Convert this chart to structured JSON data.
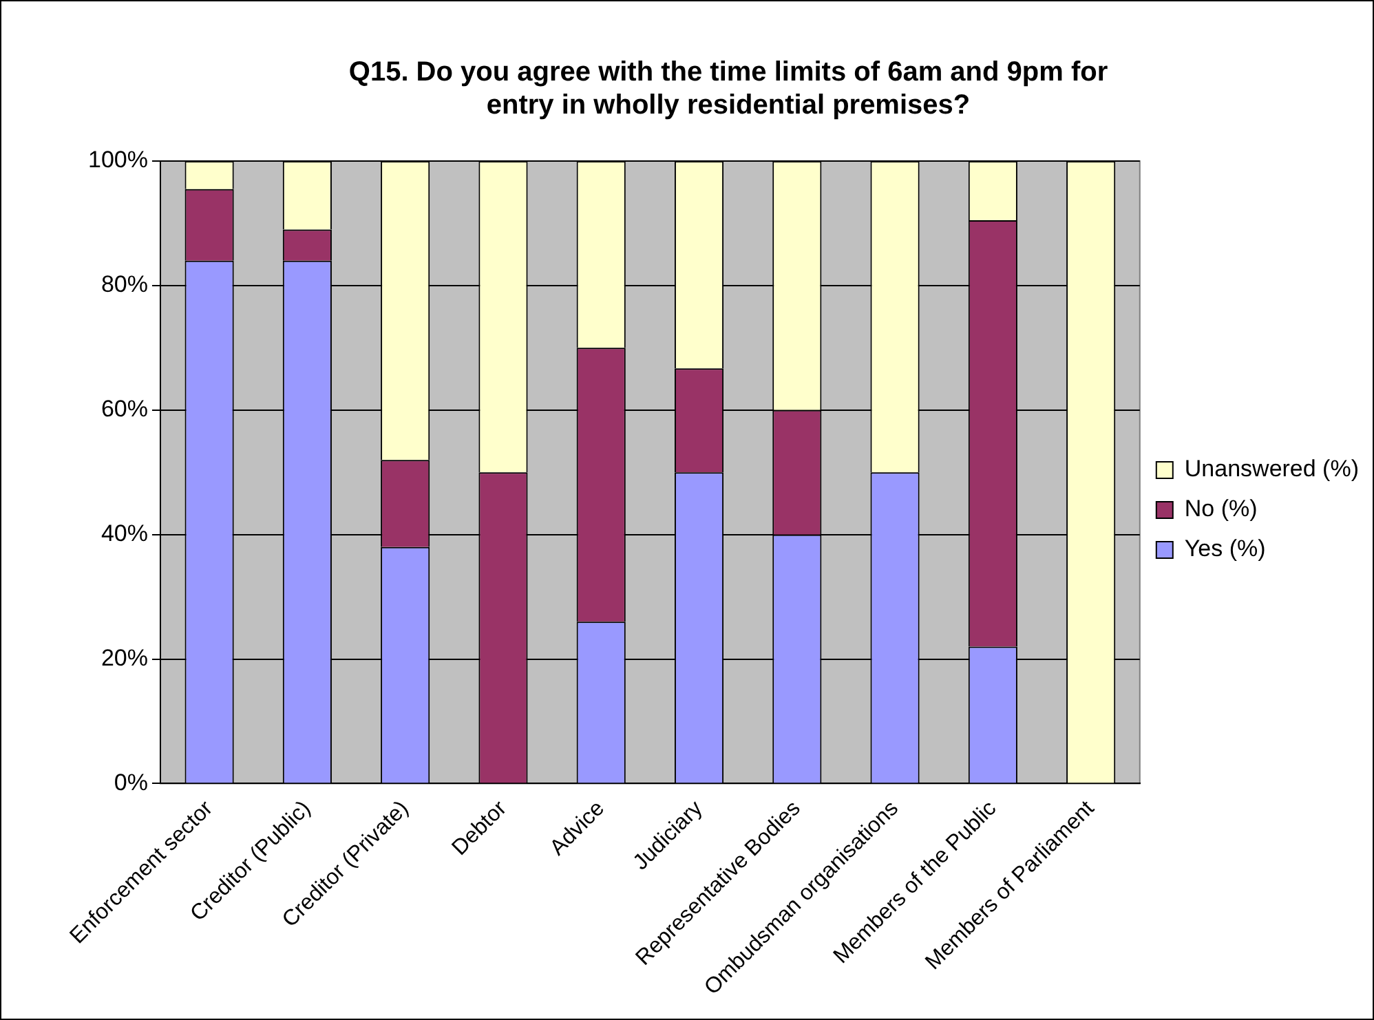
{
  "chart_data": {
    "type": "bar",
    "stacked": true,
    "title": "Q15. Do you agree with the time limits of 6am and 9pm for entry in wholly residential premises?",
    "categories": [
      "Enforcement sector",
      "Creditor (Public)",
      "Creditor (Private)",
      "Debtor",
      "Advice",
      "Judiciary",
      "Representative Bodies",
      "Ombudsman organisations",
      "Members of the Public",
      "Members of Parliament"
    ],
    "series": [
      {
        "name": "Yes (%)",
        "color": "#9999ff",
        "values": [
          84,
          84,
          38,
          0,
          26,
          50,
          40,
          50,
          22,
          0
        ]
      },
      {
        "name": "No (%)",
        "color": "#993366",
        "values": [
          11.5,
          5,
          14,
          50,
          44,
          16.7,
          20,
          0,
          68.5,
          0
        ]
      },
      {
        "name": "Unanswered (%)",
        "color": "#ffffcc",
        "values": [
          4.5,
          11,
          48,
          50,
          30,
          33.3,
          40,
          50,
          9.5,
          100
        ]
      }
    ],
    "ylim": [
      0,
      100
    ],
    "yticks": [
      {
        "value": 0,
        "label": "0%"
      },
      {
        "value": 20,
        "label": "20%"
      },
      {
        "value": 40,
        "label": "40%"
      },
      {
        "value": 60,
        "label": "60%"
      },
      {
        "value": 80,
        "label": "80%"
      },
      {
        "value": 100,
        "label": "100%"
      }
    ],
    "grid": "y",
    "legend": "right"
  }
}
